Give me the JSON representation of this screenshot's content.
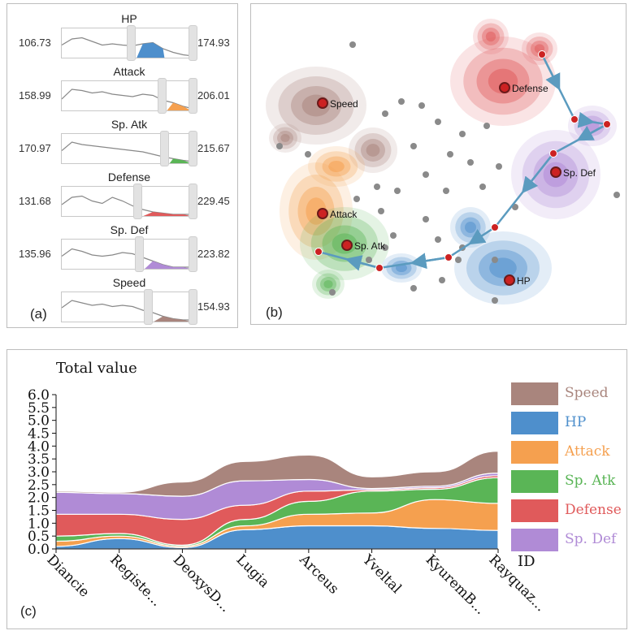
{
  "panel_labels": {
    "a": "(a)",
    "b": "(b)",
    "c": "(c)"
  },
  "colors": {
    "Speed": "#a9857d",
    "HP": "#4e8fcc",
    "Attack": "#f5a04f",
    "Sp. Atk": "#5ab556",
    "Defense": "#e05a5b",
    "Sp. Def": "#b08bd6",
    "point": "#8a8a8a",
    "path": "#5b9bbf",
    "marker": "#cc2222"
  },
  "attributes": [
    {
      "name": "HP",
      "min": "106.73",
      "max": "174.93",
      "color": "#4e8fcc",
      "highlight": [
        0.57,
        0.78
      ]
    },
    {
      "name": "Attack",
      "min": "158.99",
      "max": "206.01",
      "color": "#f5a04f",
      "highlight": [
        0.8,
        0.98
      ]
    },
    {
      "name": "Sp. Atk",
      "min": "170.97",
      "max": "215.67",
      "color": "#5ab556",
      "highlight": [
        0.82,
        0.98
      ]
    },
    {
      "name": "Defense",
      "min": "131.68",
      "max": "229.45",
      "color": "#e05a5b",
      "highlight": [
        0.62,
        0.98
      ]
    },
    {
      "name": "Sp. Def",
      "min": "135.96",
      "max": "223.82",
      "color": "#b08bd6",
      "highlight": [
        0.63,
        0.98
      ]
    },
    {
      "name": "Speed",
      "min": "",
      "max": "154.93",
      "color": "#a9857d",
      "highlight": [
        0.7,
        0.98
      ]
    }
  ],
  "clusters": [
    {
      "name": "Speed",
      "color": "#a9857d"
    },
    {
      "name": "Defense",
      "color": "#e05a5b"
    },
    {
      "name": "Sp. Def",
      "color": "#b08bd6"
    },
    {
      "name": "Attack",
      "color": "#f5a04f"
    },
    {
      "name": "Sp. Atk",
      "color": "#5ab556"
    },
    {
      "name": "HP",
      "color": "#4e8fcc"
    }
  ],
  "chart_data": {
    "type": "area",
    "title": "Total value",
    "xlabel": "ID",
    "ylabel": "",
    "ylim": [
      0,
      6.0
    ],
    "yticks": [
      "0.0",
      "0.5",
      "1.0",
      "1.5",
      "2.0",
      "2.5",
      "3.0",
      "3.5",
      "4.0",
      "4.5",
      "5.0",
      "5.5",
      "6.0"
    ],
    "categories": [
      "Diancie",
      "Registe...",
      "DeoxysD...",
      "Lugia",
      "Arceus",
      "Yveltal",
      "KyuremB...",
      "Rayquaz..."
    ],
    "series": [
      {
        "name": "HP",
        "values": [
          0.1,
          0.4,
          0.05,
          0.75,
          0.9,
          0.9,
          0.8,
          0.72
        ]
      },
      {
        "name": "Attack",
        "values": [
          0.2,
          0.1,
          0.05,
          0.15,
          0.45,
          0.5,
          1.12,
          1.05
        ]
      },
      {
        "name": "Sp. Atk",
        "values": [
          0.2,
          0.1,
          0.05,
          0.25,
          0.5,
          0.85,
          0.4,
          1.0
        ]
      },
      {
        "name": "Defense",
        "values": [
          0.85,
          0.75,
          1.0,
          0.55,
          0.4,
          0.05,
          0.06,
          0.08
        ]
      },
      {
        "name": "Sp. Def",
        "values": [
          0.85,
          0.8,
          0.9,
          0.95,
          0.45,
          0.05,
          0.06,
          0.1
        ]
      },
      {
        "name": "Speed",
        "values": [
          0.05,
          0.05,
          0.55,
          0.75,
          0.95,
          0.45,
          0.56,
          0.85
        ]
      }
    ],
    "legend": [
      "Speed",
      "HP",
      "Attack",
      "Sp. Atk",
      "Defense",
      "Sp. Def"
    ],
    "legend_position": "right",
    "grid": false
  }
}
